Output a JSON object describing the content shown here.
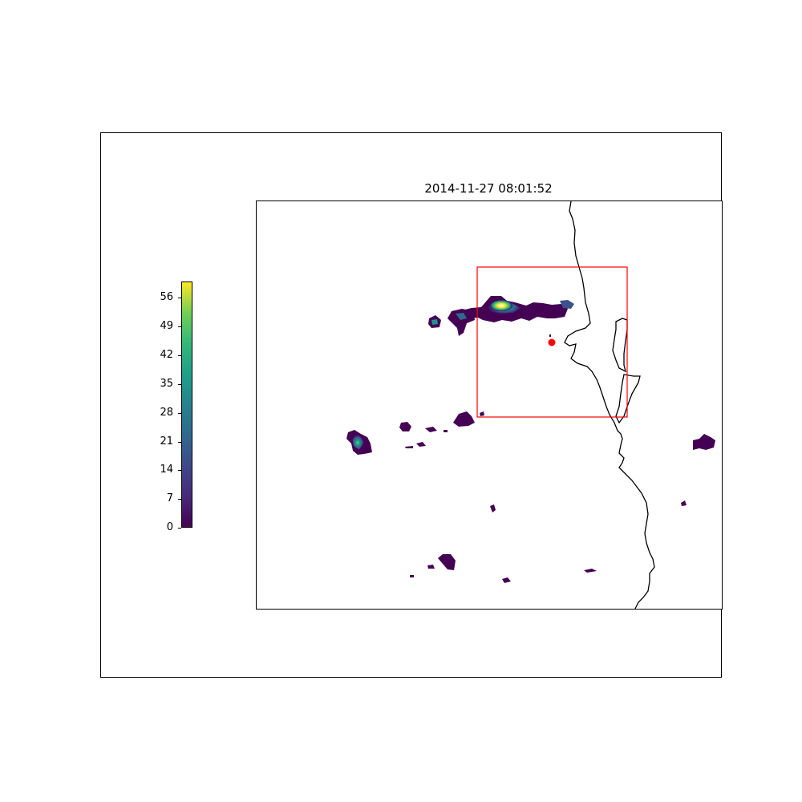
{
  "title": "2014-11-27 08:01:52",
  "colorbar": {
    "colormap": "viridis",
    "min": 0,
    "max": 60,
    "ticks": [
      "0",
      "7",
      "14",
      "21",
      "28",
      "35",
      "42",
      "49",
      "56"
    ]
  },
  "colors": {
    "low": "#440154",
    "mid_low": "#3b528b",
    "mid": "#21918c",
    "mid_high": "#5ec962",
    "high": "#fde725",
    "marker": "#ff0000",
    "box": "#ff0000",
    "coastline": "#000000"
  },
  "markers": [
    {
      "name": "radar-site",
      "shape": "circle",
      "color": "#ff0000"
    }
  ],
  "highlight_box": {
    "color": "#ff0000"
  }
}
